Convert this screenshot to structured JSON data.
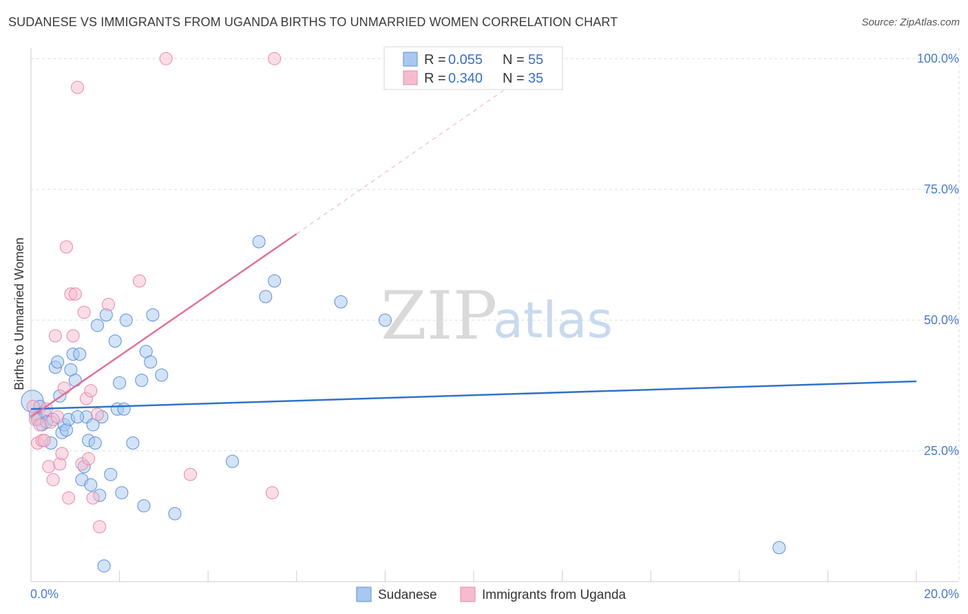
{
  "title": "SUDANESE VS IMMIGRANTS FROM UGANDA BIRTHS TO UNMARRIED WOMEN CORRELATION CHART",
  "source": "Source: ZipAtlas.com",
  "watermark": {
    "zip": "ZIP",
    "atlas": "atlas"
  },
  "colors": {
    "blue_fill": "#a8c8f0",
    "blue_stroke": "#5b8fd6",
    "blue_line": "#2f72c9",
    "pink_fill": "#f6bccd",
    "pink_stroke": "#e987a6",
    "pink_line": "#e0709a",
    "grid": "#dddddd",
    "axis_text": "#4a7cc7"
  },
  "legend": {
    "series": [
      {
        "r_label": "R = ",
        "r_value": "0.055",
        "n_label": "N = ",
        "n_value": "55"
      },
      {
        "r_label": "R = ",
        "r_value": "0.340",
        "n_label": "N = ",
        "n_value": "35"
      }
    ]
  },
  "chart_data": {
    "type": "scatter",
    "title": "SUDANESE VS IMMIGRANTS FROM UGANDA BIRTHS TO UNMARRIED WOMEN CORRELATION CHART",
    "ylabel": "Births to Unmarried Women",
    "xlabel": "",
    "xlim": [
      0,
      20
    ],
    "ylim": [
      0,
      102
    ],
    "x_ticks": [
      "0.0%",
      "20.0%"
    ],
    "y_ticks": [
      {
        "value": 25,
        "label": "25.0%"
      },
      {
        "value": 50,
        "label": "50.0%"
      },
      {
        "value": 75,
        "label": "75.0%"
      },
      {
        "value": 100,
        "label": "100.0%"
      }
    ],
    "series": [
      {
        "name": "Sudanese",
        "trend": {
          "x": [
            0,
            20
          ],
          "y": [
            33.0,
            38.3
          ],
          "dashed_ext": null
        },
        "points": [
          [
            0.03,
            34.5
          ],
          [
            0.1,
            32.0
          ],
          [
            0.15,
            31.0
          ],
          [
            0.25,
            30.0
          ],
          [
            0.3,
            32.5
          ],
          [
            0.35,
            30.5
          ],
          [
            0.45,
            26.5
          ],
          [
            0.55,
            41.0
          ],
          [
            0.6,
            42.0
          ],
          [
            0.65,
            35.5
          ],
          [
            0.7,
            28.5
          ],
          [
            0.75,
            30.0
          ],
          [
            0.8,
            29.0
          ],
          [
            0.85,
            31.0
          ],
          [
            0.9,
            40.5
          ],
          [
            0.95,
            43.5
          ],
          [
            1.0,
            38.5
          ],
          [
            1.1,
            43.5
          ],
          [
            1.15,
            19.5
          ],
          [
            1.2,
            22.0
          ],
          [
            1.25,
            31.5
          ],
          [
            1.3,
            27.0
          ],
          [
            1.35,
            18.5
          ],
          [
            1.4,
            30.0
          ],
          [
            1.45,
            26.5
          ],
          [
            1.5,
            49.0
          ],
          [
            1.55,
            16.5
          ],
          [
            1.6,
            31.5
          ],
          [
            1.65,
            3.0
          ],
          [
            1.7,
            51.0
          ],
          [
            1.8,
            20.5
          ],
          [
            1.9,
            46.0
          ],
          [
            1.95,
            33.0
          ],
          [
            2.0,
            38.0
          ],
          [
            2.05,
            17.0
          ],
          [
            2.1,
            33.0
          ],
          [
            2.15,
            50.0
          ],
          [
            2.3,
            26.5
          ],
          [
            2.5,
            38.5
          ],
          [
            2.55,
            14.5
          ],
          [
            2.6,
            44.0
          ],
          [
            2.7,
            42.0
          ],
          [
            2.75,
            51.0
          ],
          [
            2.95,
            39.5
          ],
          [
            3.25,
            13.0
          ],
          [
            4.55,
            23.0
          ],
          [
            5.15,
            65.0
          ],
          [
            5.3,
            54.5
          ],
          [
            5.5,
            57.5
          ],
          [
            7.0,
            53.5
          ],
          [
            8.0,
            50.0
          ],
          [
            16.9,
            6.5
          ],
          [
            0.2,
            33.5
          ],
          [
            0.5,
            31.0
          ],
          [
            1.05,
            31.5
          ]
        ]
      },
      {
        "name": "Immigrants from Uganda",
        "trend": {
          "x": [
            0,
            6.0
          ],
          "y": [
            31.5,
            66.5
          ],
          "dashed_ext": {
            "x": [
              6.0,
              11.2
            ],
            "y": [
              66.5,
              97.0
            ]
          }
        },
        "points": [
          [
            0.05,
            33.5
          ],
          [
            0.1,
            31.0
          ],
          [
            0.15,
            26.5
          ],
          [
            0.25,
            27.0
          ],
          [
            0.3,
            27.0
          ],
          [
            0.35,
            33.0
          ],
          [
            0.4,
            22.0
          ],
          [
            0.45,
            30.5
          ],
          [
            0.5,
            19.5
          ],
          [
            0.55,
            47.0
          ],
          [
            0.6,
            31.5
          ],
          [
            0.65,
            22.5
          ],
          [
            0.7,
            24.5
          ],
          [
            0.75,
            37.0
          ],
          [
            0.8,
            64.0
          ],
          [
            0.85,
            16.0
          ],
          [
            0.9,
            55.0
          ],
          [
            0.95,
            47.0
          ],
          [
            1.0,
            55.0
          ],
          [
            1.05,
            94.5
          ],
          [
            1.15,
            22.5
          ],
          [
            1.2,
            51.5
          ],
          [
            1.25,
            35.0
          ],
          [
            1.3,
            23.5
          ],
          [
            1.35,
            36.5
          ],
          [
            1.4,
            16.0
          ],
          [
            1.5,
            32.0
          ],
          [
            1.55,
            10.5
          ],
          [
            1.75,
            53.0
          ],
          [
            2.45,
            57.5
          ],
          [
            3.05,
            100.0
          ],
          [
            3.6,
            20.5
          ],
          [
            5.45,
            17.0
          ],
          [
            5.5,
            100.0
          ],
          [
            0.2,
            30.0
          ]
        ]
      }
    ]
  }
}
